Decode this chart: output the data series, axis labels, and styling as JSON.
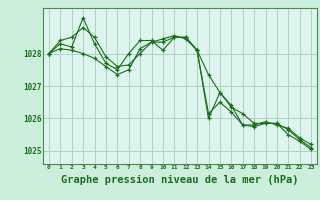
{
  "background_color": "#cceedd",
  "plot_bg_color": "#ddf5ee",
  "grid_color": "#aaccbb",
  "line_color": "#1a6e1a",
  "xlabel": "Graphe pression niveau de la mer (hPa)",
  "xlabel_fontsize": 7.5,
  "ylabel_ticks": [
    1025,
    1026,
    1027,
    1028
  ],
  "xlim": [
    -0.5,
    23.5
  ],
  "ylim": [
    1024.6,
    1029.4
  ],
  "xtick_labels": [
    "0",
    "1",
    "2",
    "3",
    "4",
    "5",
    "6",
    "7",
    "8",
    "9",
    "10",
    "11",
    "12",
    "13",
    "14",
    "15",
    "16",
    "17",
    "18",
    "19",
    "20",
    "21",
    "22",
    "23"
  ],
  "series": [
    [
      1028.0,
      1028.3,
      1028.2,
      1029.1,
      1028.3,
      1027.7,
      1027.5,
      1028.0,
      1028.4,
      1028.4,
      1028.1,
      1028.5,
      1028.5,
      1028.1,
      1026.0,
      1026.8,
      1026.4,
      1025.8,
      1025.8,
      1025.9,
      1025.8,
      1025.7,
      1025.4,
      1025.2
    ],
    [
      1028.0,
      1028.4,
      1028.5,
      1028.8,
      1028.5,
      1027.9,
      1027.6,
      1027.65,
      1028.0,
      1028.35,
      1028.35,
      1028.5,
      1028.5,
      1028.1,
      1027.35,
      1026.8,
      1026.35,
      1026.15,
      1025.85,
      1025.85,
      1025.85,
      1025.65,
      1025.35,
      1025.1
    ],
    [
      1028.0,
      1028.15,
      1028.1,
      1028.0,
      1027.85,
      1027.6,
      1027.35,
      1027.5,
      1028.15,
      1028.35,
      1028.45,
      1028.55,
      1028.45,
      1028.1,
      1026.15,
      1026.5,
      1026.2,
      1025.8,
      1025.75,
      1025.85,
      1025.85,
      1025.5,
      1025.3,
      1025.05
    ]
  ]
}
